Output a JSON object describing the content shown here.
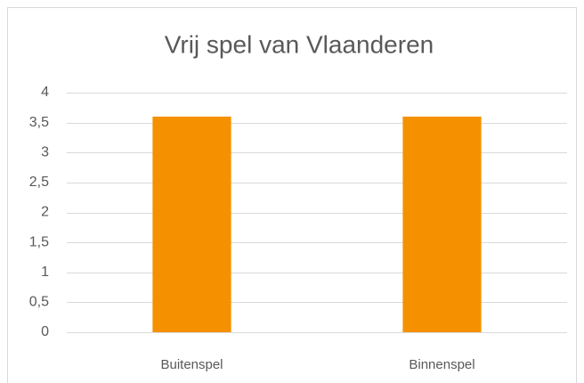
{
  "chart_data": {
    "type": "bar",
    "title": "Vrij spel van Vlaanderen",
    "categories": [
      "Buitenspel",
      "Binnenspel"
    ],
    "values": [
      3.6,
      3.6
    ],
    "color": "#f59100",
    "ylim": [
      0,
      4
    ],
    "yticks": [
      0,
      {
        "value": 0.5,
        "label": "0,5"
      },
      1,
      {
        "value": 1.5,
        "label": "1,5"
      },
      2,
      {
        "value": 2.5,
        "label": "2,5"
      },
      3,
      {
        "value": 3.5,
        "label": "3,5"
      },
      4
    ],
    "grid": true
  }
}
